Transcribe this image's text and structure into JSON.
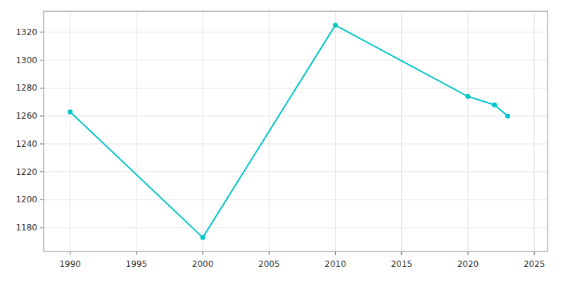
{
  "chart_data": {
    "type": "line",
    "x": [
      1990,
      2000,
      2010,
      2020,
      2022,
      2023
    ],
    "values": [
      1263,
      1173,
      1325,
      1274,
      1268,
      1260
    ],
    "color": "#00C5C8",
    "marker": "circle",
    "xlim": [
      1988,
      2026
    ],
    "ylim": [
      1163,
      1335
    ],
    "xticks": [
      1990,
      1995,
      2000,
      2005,
      2010,
      2015,
      2020,
      2025
    ],
    "yticks": [
      1180,
      1200,
      1220,
      1240,
      1260,
      1280,
      1300,
      1320
    ],
    "grid": true
  }
}
